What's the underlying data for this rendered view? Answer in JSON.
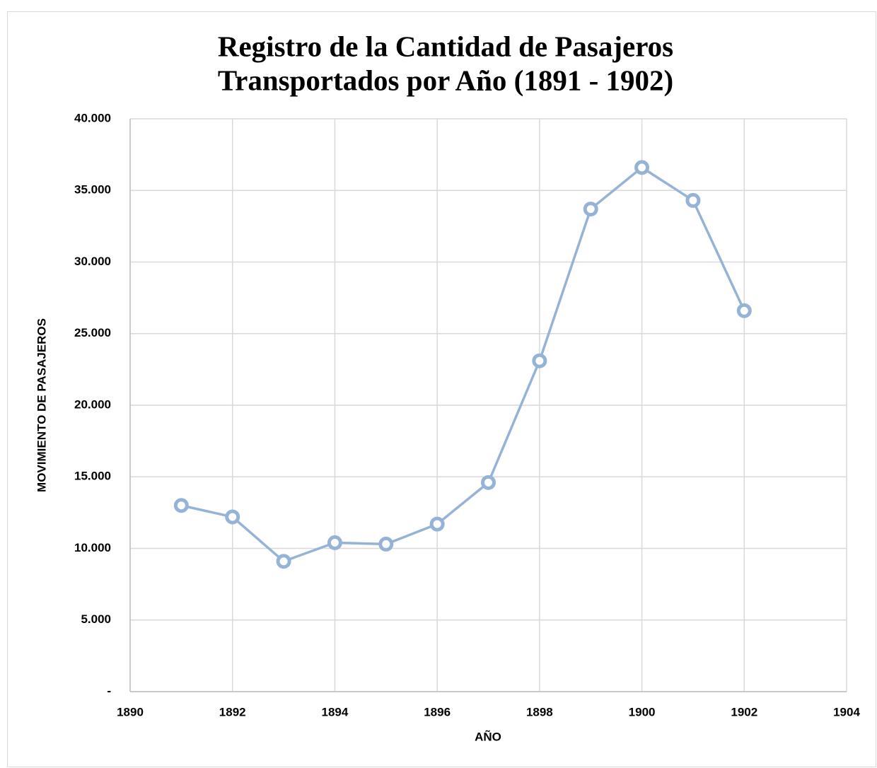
{
  "chart_data": {
    "type": "line",
    "title": [
      "Registro de la Cantidad de Pasajeros",
      "Transportados por Año (1891 - 1902)"
    ],
    "x_label": "AÑO",
    "y_label": "MOVIMIENTO DE PASAJEROS",
    "x": [
      1891,
      1892,
      1893,
      1894,
      1895,
      1896,
      1897,
      1898,
      1899,
      1900,
      1901,
      1902
    ],
    "series": [
      {
        "color": "#95b3d7",
        "values": [
          13000,
          12200,
          9100,
          10400,
          10300,
          11700,
          14600,
          23100,
          33700,
          36600,
          34300,
          26600
        ]
      }
    ],
    "xlim": [
      1890,
      1904
    ],
    "xticks": [
      1890,
      1892,
      1894,
      1896,
      1898,
      1900,
      1902,
      1904
    ],
    "ylim": [
      0,
      40000
    ],
    "yticks": [
      {
        "value": 0,
        "label": "-"
      },
      {
        "value": 5000,
        "label": "5.000"
      },
      {
        "value": 10000,
        "label": "10.000"
      },
      {
        "value": 15000,
        "label": "15.000"
      },
      {
        "value": 20000,
        "label": "20.000"
      },
      {
        "value": 25000,
        "label": "25.000"
      },
      {
        "value": 30000,
        "label": "30.000"
      },
      {
        "value": 35000,
        "label": "35.000"
      },
      {
        "value": 40000,
        "label": "40.000"
      }
    ],
    "grid": true
  }
}
